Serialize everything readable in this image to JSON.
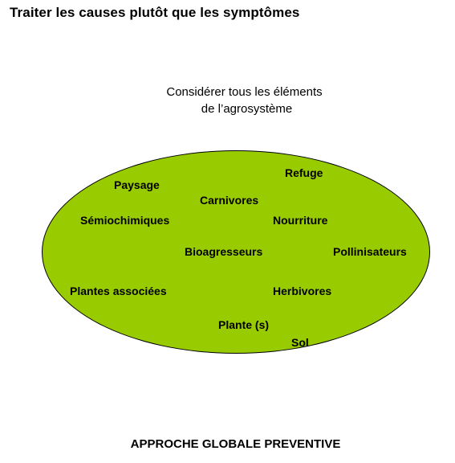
{
  "title": "Traiter les causes plutôt que les  symptômes",
  "subtitle": {
    "line1": "Considérer tous les éléments",
    "line2": "de l’agrosystème"
  },
  "diagram": {
    "fill_color": "#99cc00",
    "outline_color": "#000000",
    "terms": {
      "refuge": "Refuge",
      "paysage": "Paysage",
      "carnivores": "Carnivores",
      "semiochimiques": "Sémiochimiques",
      "nourriture": "Nourriture",
      "bioagresseurs": "Bioagresseurs",
      "pollinisateurs": "Pollinisateurs",
      "plantes_associees": "Plantes associées",
      "herbivores": "Herbivores",
      "plante": "Plante (s)",
      "sol": "Sol"
    }
  },
  "footer": "APPROCHE GLOBALE PREVENTIVE"
}
